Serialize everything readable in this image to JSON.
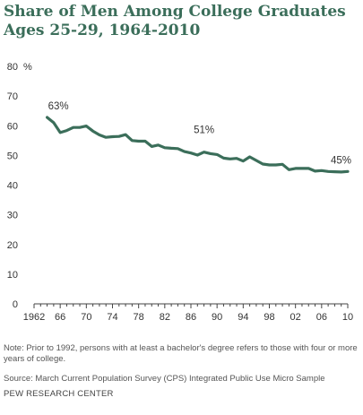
{
  "title_line1": "Share of Men Among College Graduates",
  "title_line2": "Ages 25-29, 1964-2010",
  "note": "Note: Prior to 1992, persons with at least a bachelor's degree refers to those with four or more years of college.",
  "source": "Source: March Current Population Survey (CPS) Integrated Public Use Micro Sample",
  "brand": "PEW RESEARCH CENTER",
  "colors": {
    "line": "#3b6e5a",
    "title": "#3b6e5a",
    "axis": "#444444"
  },
  "chart_data": {
    "type": "line",
    "title": "Share of Men Among College Graduates Ages 25-29, 1964-2010",
    "xlabel": "",
    "ylabel": "%",
    "ylim": [
      0,
      80
    ],
    "xlim": [
      1962,
      2010
    ],
    "grid": false,
    "y_ticks": [
      0,
      10,
      20,
      30,
      40,
      50,
      60,
      70,
      80
    ],
    "x_tick_values": [
      1962,
      1966,
      1970,
      1974,
      1978,
      1982,
      1986,
      1990,
      1994,
      1998,
      2002,
      2006,
      2010
    ],
    "x_tick_labels": [
      "1962",
      "66",
      "70",
      "74",
      "78",
      "82",
      "86",
      "90",
      "94",
      "98",
      "02",
      "06",
      "10"
    ],
    "y_unit_label": "%",
    "series": [
      {
        "x": [
          1964,
          1965,
          1966,
          1967,
          1968,
          1969,
          1970,
          1971,
          1972,
          1973,
          1974,
          1975,
          1976,
          1977,
          1978,
          1979,
          1980,
          1981,
          1982,
          1983,
          1984,
          1985,
          1986,
          1987,
          1988,
          1989,
          1990,
          1991,
          1992,
          1993,
          1994,
          1995,
          1996,
          1997,
          1998,
          1999,
          2000,
          2001,
          2002,
          2003,
          2004,
          2005,
          2006,
          2007,
          2008,
          2009,
          2010
        ],
        "values": [
          62.8,
          61,
          57.7,
          58.4,
          59.4,
          59.4,
          59.9,
          58.2,
          56.9,
          56.1,
          56.3,
          56.4,
          57,
          55,
          54.8,
          54.8,
          53,
          53.5,
          52.6,
          52.4,
          52.3,
          51.3,
          50.8,
          50.1,
          51.1,
          50.6,
          50.3,
          49.1,
          48.8,
          49,
          48.1,
          49.5,
          48.3,
          47.1,
          46.8,
          46.8,
          47,
          45.2,
          45.6,
          45.6,
          45.6,
          44.7,
          44.9,
          44.6,
          44.5,
          44.4,
          44.6
        ]
      }
    ],
    "annotations": [
      {
        "x": 1964,
        "y": 62.8,
        "text": "63%"
      },
      {
        "x": 1988,
        "y": 51.1,
        "text": "51%"
      },
      {
        "x": 2010,
        "y": 44.6,
        "text": "45%"
      }
    ]
  }
}
